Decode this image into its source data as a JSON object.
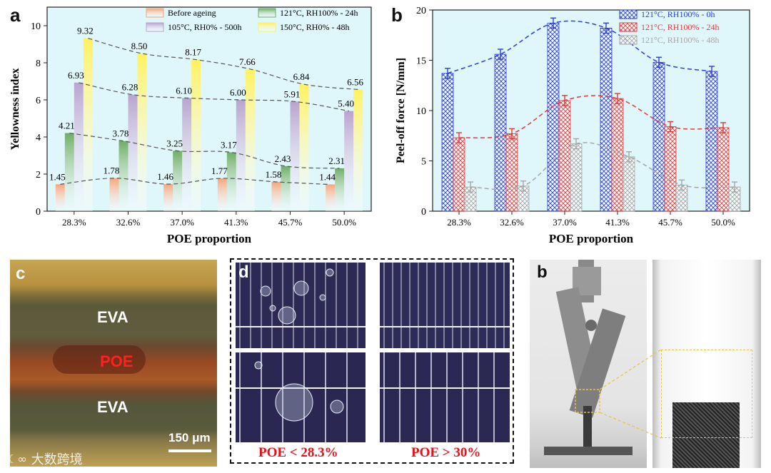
{
  "panel_a": {
    "letter": "a",
    "chart_data": {
      "type": "bar",
      "categories": [
        "28.3%",
        "32.6%",
        "37.0%",
        "41.3%",
        "45.7%",
        "50.0%"
      ],
      "xlabel": "POE proportion",
      "ylabel": "Yellowness index",
      "ylim": [
        0,
        11
      ],
      "yticks": [
        "0",
        "2",
        "4",
        "6",
        "8",
        "10"
      ],
      "legend_position": "top",
      "series": [
        {
          "name": "Before ageing",
          "color": "#f6a57a",
          "values": [
            1.45,
            1.78,
            1.46,
            1.77,
            1.58,
            1.44
          ],
          "labels": [
            "1.45",
            "1.78",
            "1.46",
            "1.77",
            "1.58",
            "1.44"
          ]
        },
        {
          "name": "121°C, RH100% - 24h",
          "color": "#6fae67",
          "values": [
            4.21,
            3.78,
            3.25,
            3.17,
            2.43,
            2.31
          ],
          "labels": [
            "4.21",
            "3.78",
            "3.25",
            "3.17",
            "2.43",
            "2.31"
          ]
        },
        {
          "name": "105°C, RH0% - 500h",
          "color": "#b9a3cf",
          "values": [
            6.93,
            6.28,
            6.1,
            6.0,
            5.91,
            5.4
          ],
          "labels": [
            "6.93",
            "6.28",
            "6.10",
            "6.00",
            "5.91",
            "5.40"
          ]
        },
        {
          "name": "150°C, RH0% - 48h",
          "color": "#fff25e",
          "values": [
            9.32,
            8.5,
            8.17,
            7.66,
            6.84,
            6.56
          ],
          "labels": [
            "9.32",
            "8.50",
            "8.17",
            "7.66",
            "6.84",
            "6.56"
          ]
        }
      ]
    }
  },
  "panel_b": {
    "letter": "b",
    "chart_data": {
      "type": "bar",
      "categories": [
        "28.3%",
        "32.6%",
        "37.0%",
        "41.3%",
        "45.7%",
        "50.0%"
      ],
      "xlabel": "POE proportion",
      "ylabel": "Peel-off force [N/mm]",
      "ylim": [
        0,
        20
      ],
      "yticks": [
        "0",
        "5",
        "10",
        "15",
        "20"
      ],
      "legend_position": "top-right",
      "series": [
        {
          "name": "121°C, RH100% - 0h",
          "color": "#2b3fd6",
          "values": [
            13.7,
            15.6,
            18.7,
            18.2,
            14.8,
            13.9
          ],
          "errors": [
            0.5,
            0.5,
            0.5,
            0.5,
            0.5,
            0.5
          ]
        },
        {
          "name": "121°C, RH100% - 24h",
          "color": "#e23a3a",
          "values": [
            7.3,
            7.7,
            11.0,
            11.2,
            8.4,
            8.3
          ],
          "errors": [
            0.5,
            0.5,
            0.5,
            0.5,
            0.5,
            0.5
          ]
        },
        {
          "name": "121°C, RH100% - 48h",
          "color": "#a6a6a6",
          "values": [
            2.4,
            2.5,
            6.7,
            5.4,
            2.6,
            2.4
          ],
          "errors": [
            0.5,
            0.5,
            0.5,
            0.5,
            0.5,
            0.5
          ]
        }
      ]
    }
  },
  "panel_c": {
    "letter": "c",
    "layers": [
      "EVA",
      "POE",
      "EVA"
    ],
    "scale_bar": "150 μm"
  },
  "panel_d": {
    "letter": "d",
    "captions": [
      "POE < 28.3%",
      "POE > 30%"
    ]
  },
  "panel_b2": {
    "letter": "b"
  },
  "watermark": {
    "text": "大数跨境"
  },
  "colors": {
    "blue": "#2b3fd6",
    "red": "#e23a3a",
    "gray": "#a6a6a6",
    "cyan_bg": "#dff6fb"
  }
}
